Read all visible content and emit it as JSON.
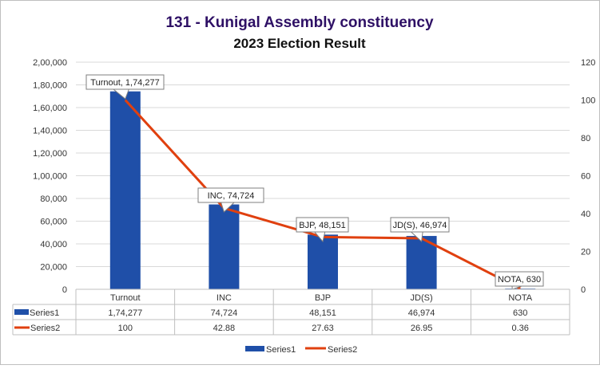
{
  "chart_data": {
    "type": "bar+line",
    "title": "131 - Kunigal Assembly constituency",
    "subtitle": "2023 Election Result",
    "categories": [
      "Turnout",
      "INC",
      "BJP",
      "JD(S)",
      "NOTA"
    ],
    "series": [
      {
        "name": "Series1",
        "type": "bar",
        "axis": "left",
        "values": [
          174277,
          74724,
          48151,
          46974,
          630
        ],
        "labels": [
          "1,74,277",
          "74,724",
          "48,151",
          "46,974",
          "630"
        ],
        "color": "#1f4fa8"
      },
      {
        "name": "Series2",
        "type": "line",
        "axis": "right",
        "values": [
          100,
          42.88,
          27.63,
          26.95,
          0.36
        ],
        "labels": [
          "100",
          "42.88",
          "27.63",
          "26.95",
          "0.36"
        ],
        "color": "#e0400f"
      }
    ],
    "data_labels": [
      "Turnout, 1,74,277",
      "INC, 74,724",
      "BJP, 48,151",
      "JD(S), 46,974",
      "NOTA, 630"
    ],
    "y_left": {
      "range": [
        0,
        200000
      ],
      "ticks": [
        "0",
        "20,000",
        "40,000",
        "60,000",
        "80,000",
        "1,00,000",
        "1,20,000",
        "1,40,000",
        "1,60,000",
        "1,80,000",
        "2,00,000"
      ]
    },
    "y_right": {
      "range": [
        0,
        120
      ],
      "ticks": [
        "0",
        "20",
        "40",
        "60",
        "80",
        "100",
        "120"
      ]
    },
    "grid": true,
    "data_table": true,
    "legend": "bottom",
    "title_color": "#2e1065"
  }
}
